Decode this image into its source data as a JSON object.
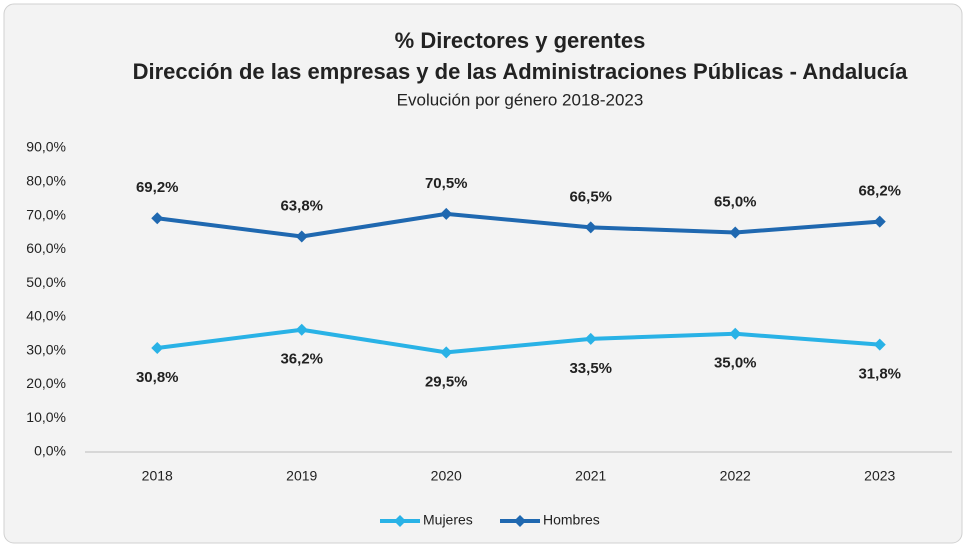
{
  "chart_data": {
    "type": "line",
    "title": "% Directores y gerentes",
    "subtitle": "Dirección de las empresas y de las Administraciones Públicas - Andalucía",
    "description": "Evolución por género 2018-2023",
    "categories": [
      "2018",
      "2019",
      "2020",
      "2021",
      "2022",
      "2023"
    ],
    "series": [
      {
        "name": "Mujeres",
        "color": "#29b2e6",
        "values": [
          30.8,
          36.2,
          29.5,
          33.5,
          35.0,
          31.8
        ],
        "value_labels": [
          "30,8%",
          "36,2%",
          "29,5%",
          "33,5%",
          "35,0%",
          "31,8%"
        ],
        "label_position": "below"
      },
      {
        "name": "Hombres",
        "color": "#1f68b0",
        "values": [
          69.2,
          63.8,
          70.5,
          66.5,
          65.0,
          68.2
        ],
        "value_labels": [
          "69,2%",
          "63,8%",
          "70,5%",
          "66,5%",
          "65,0%",
          "68,2%"
        ],
        "label_position": "above"
      }
    ],
    "ylim": [
      0,
      90
    ],
    "yticks": [
      {
        "value": 0,
        "label": "0,0%"
      },
      {
        "value": 10,
        "label": "10,0%"
      },
      {
        "value": 20,
        "label": "20,0%"
      },
      {
        "value": 30,
        "label": "30,0%"
      },
      {
        "value": 40,
        "label": "40,0%"
      },
      {
        "value": 50,
        "label": "50,0%"
      },
      {
        "value": 60,
        "label": "60,0%"
      },
      {
        "value": 70,
        "label": "70,0%"
      },
      {
        "value": 80,
        "label": "80,0%"
      },
      {
        "value": 90,
        "label": "90,0%"
      }
    ],
    "grid": false,
    "legend": "bottom"
  }
}
